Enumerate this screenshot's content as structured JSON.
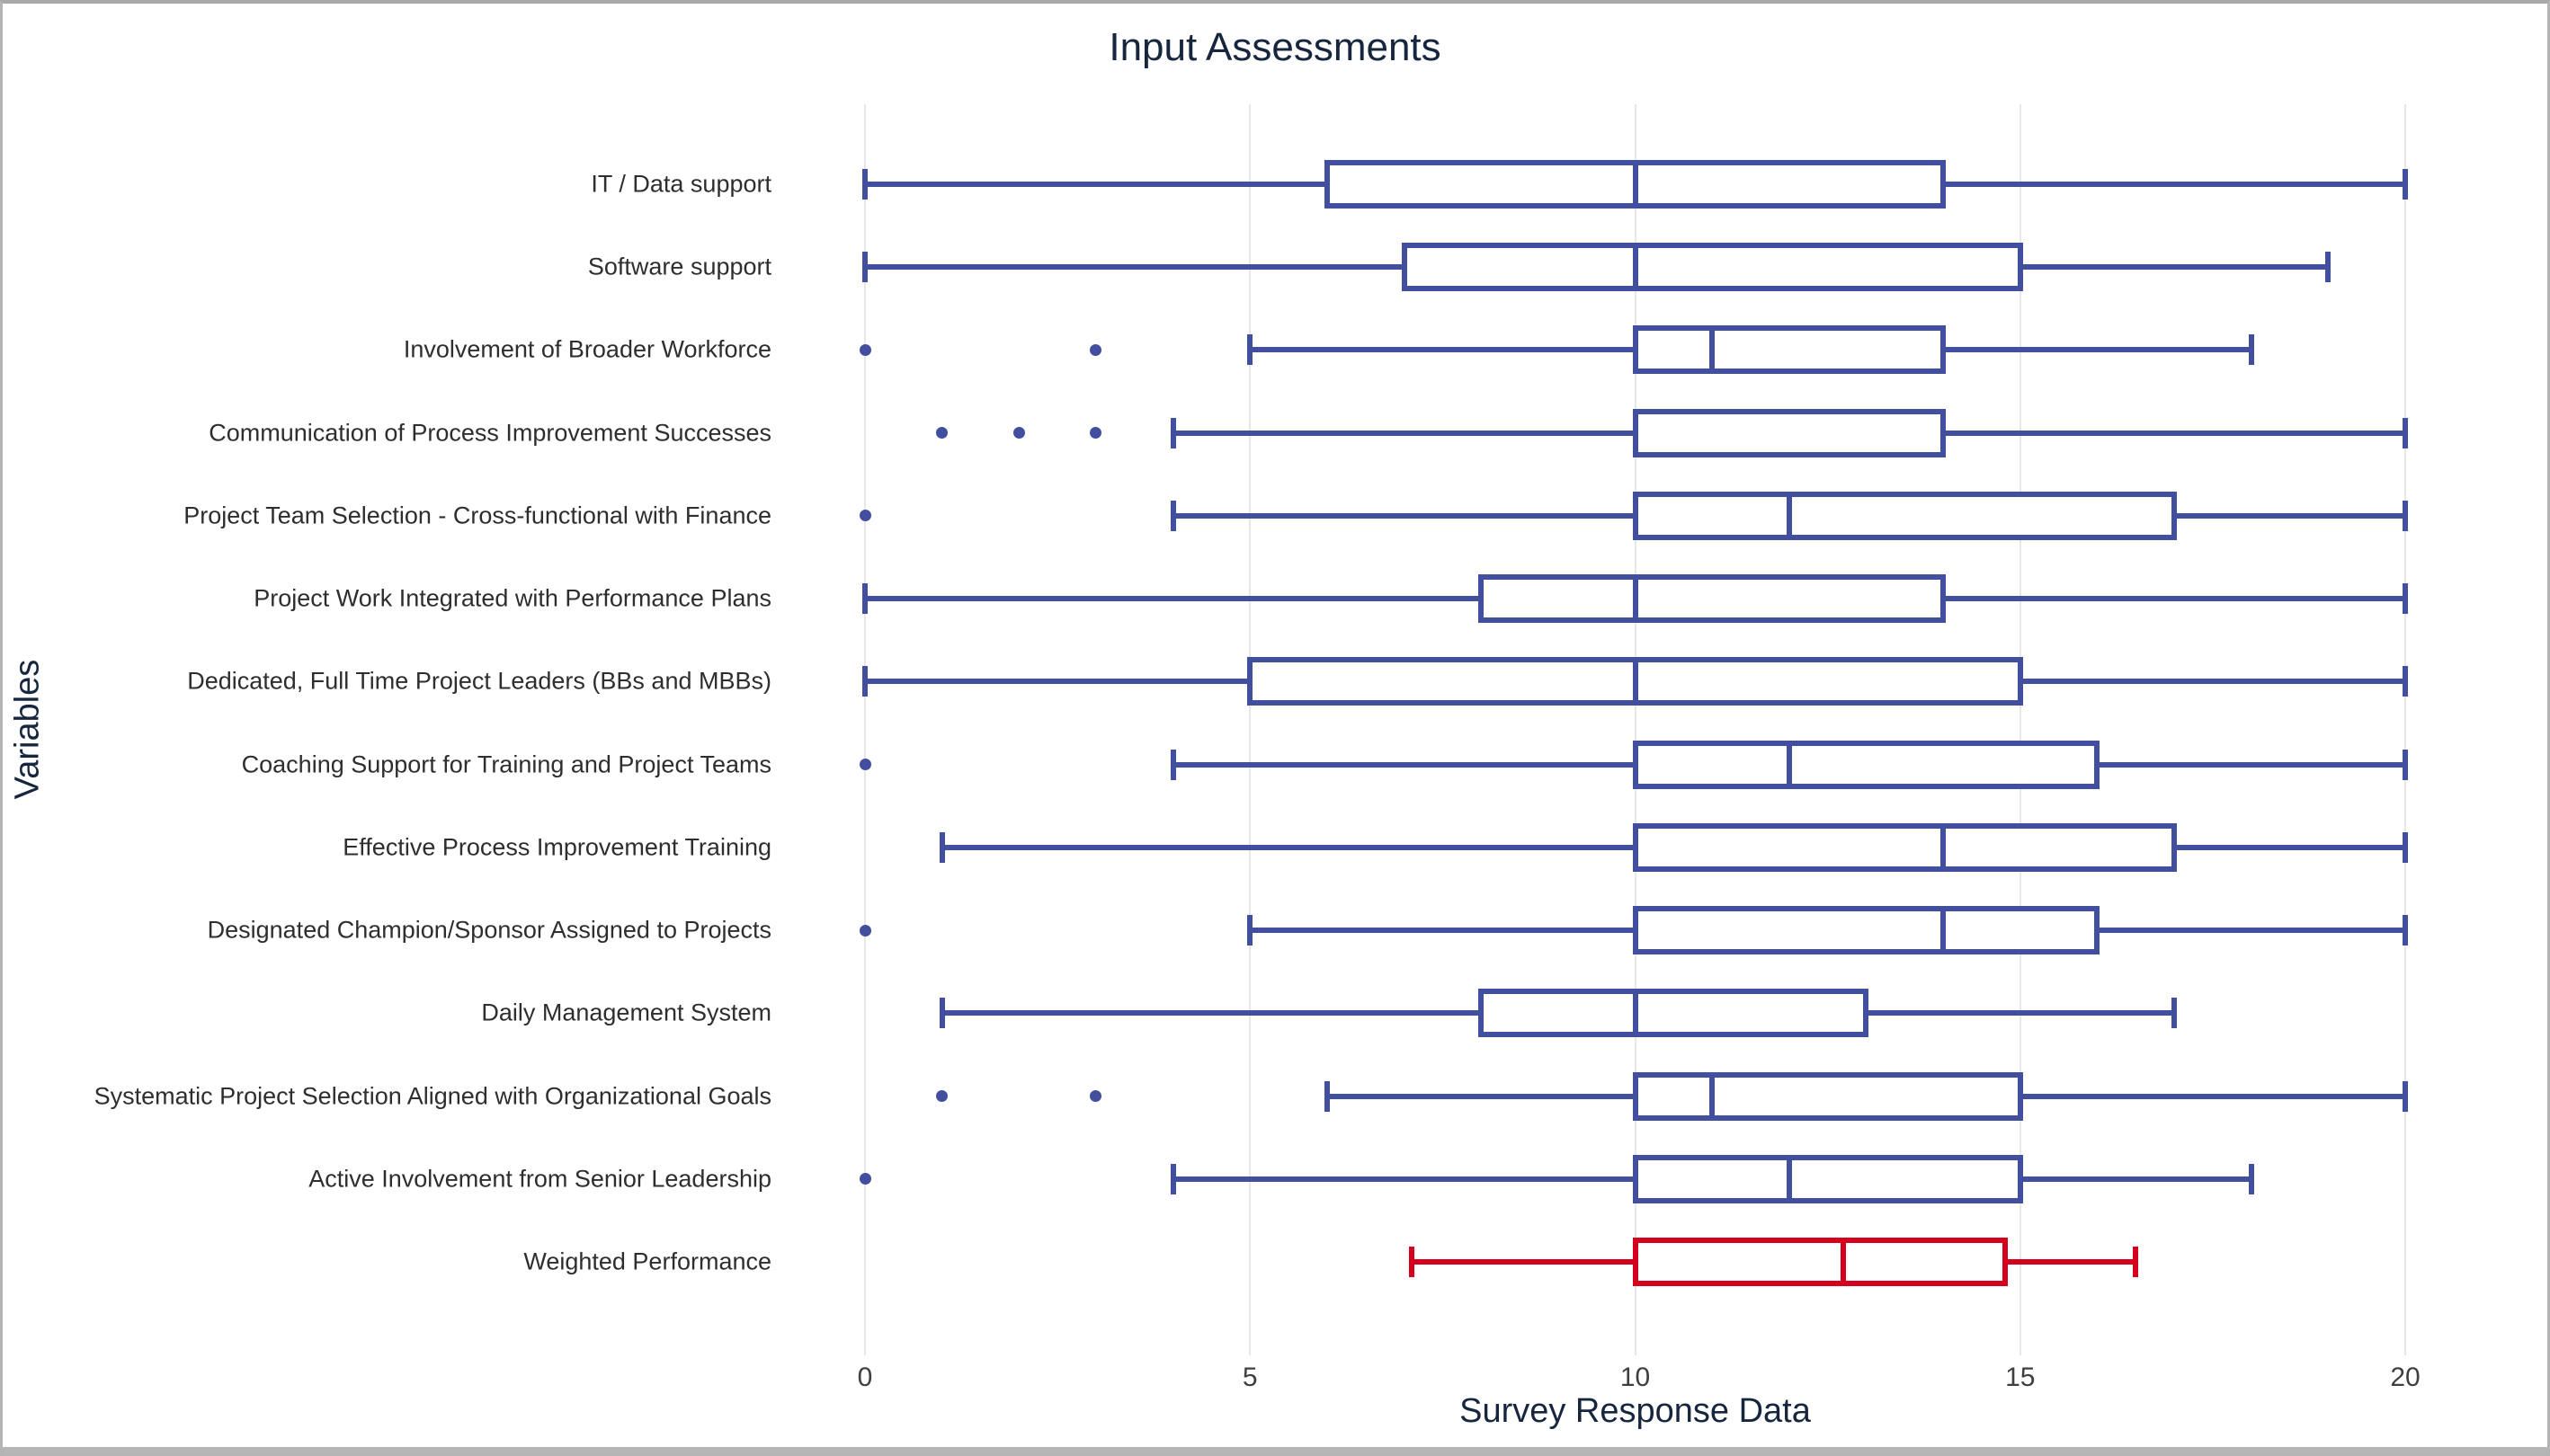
{
  "title": "Input Assessments",
  "x_axis": {
    "label": "Survey Response Data",
    "ticks": [
      "0",
      "5",
      "10",
      "15",
      "20"
    ]
  },
  "y_axis": {
    "label": "Variables"
  },
  "colors": {
    "box_blue": "#424f9e",
    "box_red": "#d4001e",
    "gridline": "#e8e8e8",
    "heading_text": "#16263e",
    "tick_text": "#3f3f3f",
    "window_border": "#b4b4b4"
  },
  "chart_data": {
    "type": "boxplot",
    "orientation": "horizontal",
    "title": "Input Assessments",
    "xlabel": "Survey Response Data",
    "ylabel": "Variables",
    "xlim": [
      0,
      20
    ],
    "x_ticks": [
      0,
      5,
      10,
      15,
      20
    ],
    "grid": "vertical-only",
    "legend": "none",
    "categories_top_to_bottom": true,
    "series": [
      {
        "name": "IT / Data support",
        "whisker_low": 0,
        "q1": 6,
        "median": 10,
        "q3": 14,
        "whisker_high": 20,
        "outliers": [],
        "color": "blue"
      },
      {
        "name": "Software support",
        "whisker_low": 0,
        "q1": 7,
        "median": 10,
        "q3": 15,
        "whisker_high": 19,
        "outliers": [],
        "color": "blue"
      },
      {
        "name": "Involvement of Broader Workforce",
        "whisker_low": 5,
        "q1": 10,
        "median": 11,
        "q3": 14,
        "whisker_high": 18,
        "outliers": [
          0,
          3
        ],
        "color": "blue"
      },
      {
        "name": "Communication of Process Improvement Successes",
        "whisker_low": 4,
        "q1": 10,
        "median": 10,
        "q3": 14,
        "whisker_high": 20,
        "outliers": [
          1,
          2,
          3
        ],
        "color": "blue"
      },
      {
        "name": "Project Team Selection - Cross-functional with Finance",
        "whisker_low": 4,
        "q1": 10,
        "median": 12,
        "q3": 17,
        "whisker_high": 20,
        "outliers": [
          0
        ],
        "color": "blue"
      },
      {
        "name": "Project Work Integrated with Performance Plans",
        "whisker_low": 0,
        "q1": 8,
        "median": 10,
        "q3": 14,
        "whisker_high": 20,
        "outliers": [],
        "color": "blue"
      },
      {
        "name": "Dedicated, Full Time Project Leaders (BBs and MBBs)",
        "whisker_low": 0,
        "q1": 5,
        "median": 10,
        "q3": 15,
        "whisker_high": 20,
        "outliers": [],
        "color": "blue"
      },
      {
        "name": "Coaching Support for Training and Project Teams",
        "whisker_low": 4,
        "q1": 10,
        "median": 12,
        "q3": 16,
        "whisker_high": 20,
        "outliers": [
          0
        ],
        "color": "blue"
      },
      {
        "name": "Effective Process Improvement Training",
        "whisker_low": 1,
        "q1": 10,
        "median": 14,
        "q3": 17,
        "whisker_high": 20,
        "outliers": [],
        "color": "blue"
      },
      {
        "name": "Designated Champion/Sponsor Assigned to Projects",
        "whisker_low": 5,
        "q1": 10,
        "median": 14,
        "q3": 16,
        "whisker_high": 20,
        "outliers": [
          0
        ],
        "color": "blue"
      },
      {
        "name": "Daily Management System",
        "whisker_low": 1,
        "q1": 8,
        "median": 10,
        "q3": 13,
        "whisker_high": 17,
        "outliers": [],
        "color": "blue"
      },
      {
        "name": "Systematic Project Selection Aligned with Organizational Goals",
        "whisker_low": 6,
        "q1": 10,
        "median": 11,
        "q3": 15,
        "whisker_high": 20,
        "outliers": [
          1,
          3
        ],
        "color": "blue"
      },
      {
        "name": "Active Involvement from Senior Leadership",
        "whisker_low": 4,
        "q1": 10,
        "median": 12,
        "q3": 15,
        "whisker_high": 18,
        "outliers": [
          0
        ],
        "color": "blue"
      },
      {
        "name": "Weighted Performance",
        "whisker_low": 7.1,
        "q1": 10,
        "median": 12.7,
        "q3": 14.8,
        "whisker_high": 16.5,
        "outliers": [],
        "color": "red"
      }
    ]
  }
}
